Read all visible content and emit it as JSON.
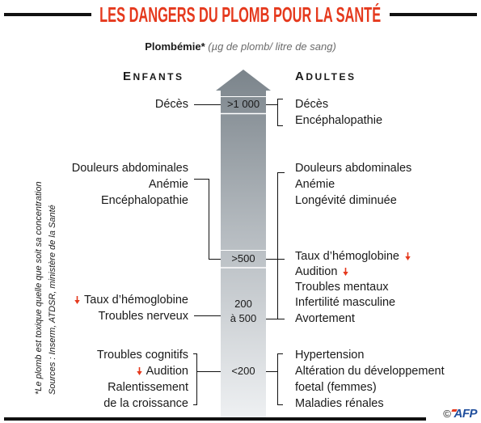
{
  "title": "LES DANGERS DU PLOMB POUR LA SANTÉ",
  "subtitle": {
    "label": "Plombémie*",
    "unit": "(µg de plomb/ litre de sang)"
  },
  "scale": {
    "levels": [
      {
        "lines": [
          ">1 000"
        ]
      },
      {
        "lines": [
          ">500"
        ]
      },
      {
        "lines": [
          "200",
          "à 500"
        ]
      },
      {
        "lines": [
          "<200"
        ]
      }
    ]
  },
  "children": {
    "label": "ENFANTS",
    "groups": [
      {
        "items": [
          {
            "text": "Décès"
          }
        ]
      },
      {
        "items": [
          {
            "text": "Douleurs abdominales"
          },
          {
            "text": "Anémie"
          },
          {
            "text": "Encéphalopathie"
          }
        ]
      },
      {
        "items": [
          {
            "text": "Taux d’hémoglobine",
            "icon": "decrease-arrow-icon"
          },
          {
            "text": "Troubles nerveux"
          }
        ]
      },
      {
        "items": [
          {
            "text": "Troubles cognitifs"
          },
          {
            "text": "Audition",
            "icon": "decrease-arrow-icon"
          },
          {
            "text": "Ralentissement"
          },
          {
            "text": "de la croissance"
          }
        ]
      }
    ]
  },
  "adults": {
    "label": "ADULTES",
    "groups": [
      {
        "items": [
          {
            "text": "Décès"
          },
          {
            "text": "Encéphalopathie"
          }
        ]
      },
      {
        "items": [
          {
            "text": "Douleurs abdominales"
          },
          {
            "text": "Anémie"
          },
          {
            "text": "Longévité diminuée"
          }
        ]
      },
      {
        "items": [
          {
            "text": "Taux d’hémoglobine",
            "icon": "decrease-arrow-icon"
          },
          {
            "text": "Audition",
            "icon": "decrease-arrow-icon"
          },
          {
            "text": "Troubles mentaux"
          },
          {
            "text": "Infertilité masculine"
          },
          {
            "text": "Avortement"
          }
        ]
      },
      {
        "items": [
          {
            "text": "Hypertension"
          },
          {
            "text": "Altération du développement"
          },
          {
            "text": "foetal (femmes)"
          },
          {
            "text": "Maladies rénales"
          }
        ]
      }
    ]
  },
  "footnote": {
    "note": "*Le plomb est toxique quelle que soit sa concentration",
    "sources": "Sources : Inserm, ATDSR, ministère de la Santé"
  },
  "credit": {
    "copyright": "©",
    "logo": "AFP"
  },
  "colors": {
    "title": "#e5391d",
    "decrease_arrow": "#e5391d",
    "text": "#1a1a1a",
    "unit_text": "#6b6b6b",
    "scale_top": "#7b848b",
    "scale_bottom": "#eef0f2",
    "rules": "#111111",
    "logo": "#1f4e9c"
  }
}
